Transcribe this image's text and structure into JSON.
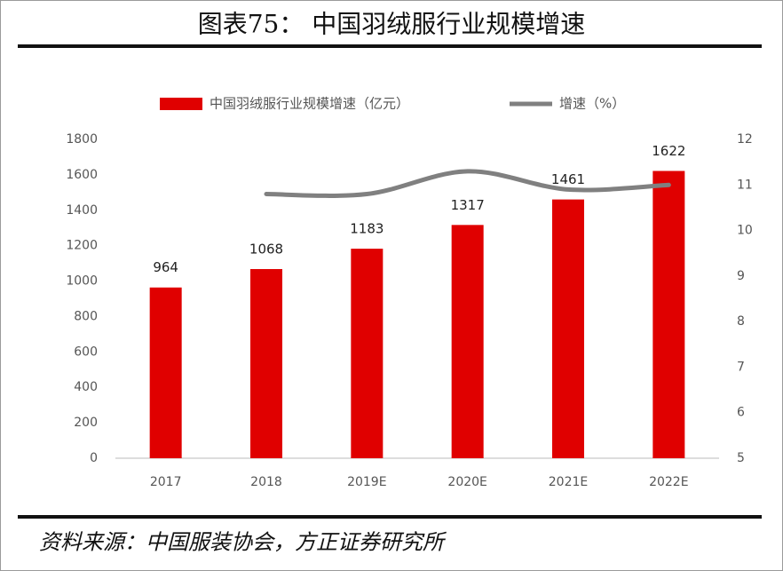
{
  "chart_data": {
    "type": "bar",
    "title": "图表75：  中国羽绒服行业规模增速",
    "source": "资料来源：中国服装协会，方正证券研究所",
    "categories": [
      "2017",
      "2018",
      "2019E",
      "2020E",
      "2021E",
      "2022E"
    ],
    "series": [
      {
        "name": "中国羽绒服行业规模增速（亿元）",
        "type": "bar",
        "color": "#e00000",
        "values": [
          964,
          1068,
          1183,
          1317,
          1461,
          1622
        ]
      },
      {
        "name": "增速（%）",
        "type": "line",
        "axis": "y2",
        "color": "#808080",
        "values": [
          null,
          10.8,
          10.8,
          11.3,
          10.9,
          11.0
        ]
      }
    ],
    "ylim": [
      0,
      1800
    ],
    "yticks": [
      0,
      200,
      400,
      600,
      800,
      1000,
      1200,
      1400,
      1600,
      1800
    ],
    "y2lim": [
      5,
      12
    ],
    "y2ticks": [
      5,
      6,
      7,
      8,
      9,
      10,
      11,
      12
    ],
    "legend": "top"
  }
}
